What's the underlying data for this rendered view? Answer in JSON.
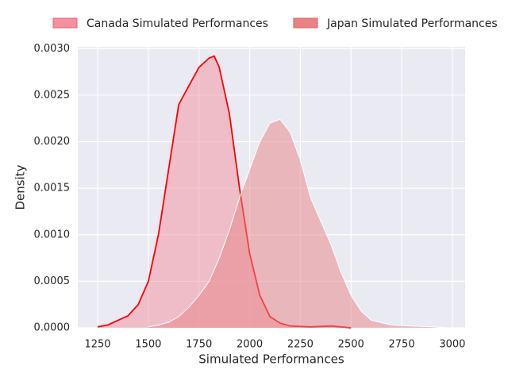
{
  "chart_data": {
    "type": "kde",
    "xlabel": "Simulated Performances",
    "ylabel": "Density",
    "xlim": [
      1152,
      3063
    ],
    "ylim": [
      0,
      0.00302
    ],
    "xticks": [
      1250,
      1500,
      1750,
      2000,
      2250,
      2500,
      2750,
      3000
    ],
    "yticks": [
      {
        "value": 0,
        "label": "0.0000"
      },
      {
        "value": 0.0005,
        "label": "0.0005"
      },
      {
        "value": 0.001,
        "label": "0.0010"
      },
      {
        "value": 0.0015,
        "label": "0.0015"
      },
      {
        "value": 0.002,
        "label": "0.0020"
      },
      {
        "value": 0.0025,
        "label": "0.0025"
      },
      {
        "value": 0.003,
        "label": "0.0030"
      }
    ],
    "grid": true,
    "legend": "top",
    "series": [
      {
        "name": "Canada Simulated Performances",
        "color": "#f2909e",
        "line_color": "#ff0000",
        "x": [
          1250,
          1300,
          1350,
          1400,
          1450,
          1500,
          1550,
          1600,
          1650,
          1700,
          1750,
          1800,
          1825,
          1850,
          1900,
          1950,
          2000,
          2050,
          2100,
          2150,
          2200,
          2300,
          2400,
          2450,
          2500
        ],
        "values": [
          1e-05,
          3e-05,
          8e-05,
          0.00013,
          0.00025,
          0.0005,
          0.001,
          0.0017,
          0.0024,
          0.0026,
          0.0028,
          0.0029,
          0.00292,
          0.0028,
          0.0023,
          0.0015,
          0.0008,
          0.00035,
          0.00012,
          5e-05,
          2e-05,
          1e-05,
          2e-05,
          1e-05,
          0
        ]
      },
      {
        "name": "Japan Simulated Performances",
        "color": "#e88284",
        "line_color": "#ffffff",
        "x": [
          1500,
          1550,
          1600,
          1650,
          1700,
          1750,
          1800,
          1850,
          1900,
          1950,
          2000,
          2050,
          2100,
          2150,
          2200,
          2250,
          2300,
          2350,
          2400,
          2450,
          2500,
          2550,
          2600,
          2700,
          2800,
          2900,
          2970
        ],
        "values": [
          1e-05,
          3e-05,
          6e-05,
          0.00012,
          0.00022,
          0.00035,
          0.0005,
          0.00075,
          0.00105,
          0.0014,
          0.0017,
          0.002,
          0.0022,
          0.00224,
          0.0021,
          0.0018,
          0.0014,
          0.00115,
          0.0009,
          0.0006,
          0.00035,
          0.00018,
          8e-05,
          3e-05,
          2e-05,
          1e-05,
          0
        ]
      }
    ]
  }
}
